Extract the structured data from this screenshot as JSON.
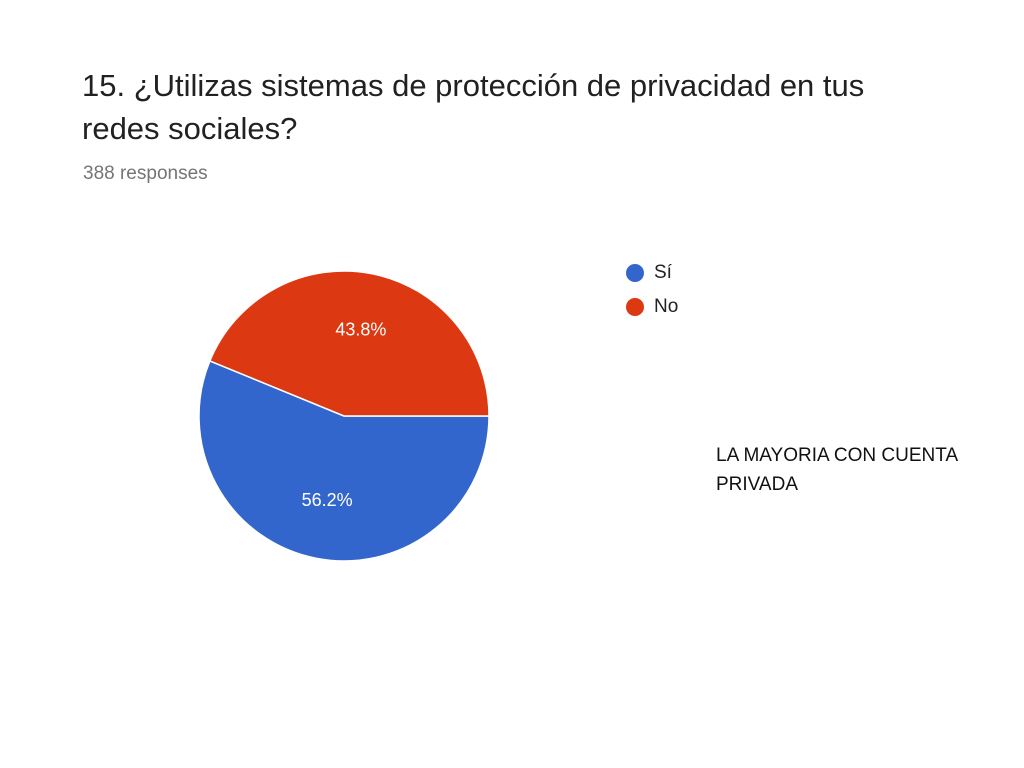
{
  "slide": {
    "note": "LA MAYORIA CON CUENTA PRIVADA"
  },
  "chart_data": {
    "type": "pie",
    "title": "15. ¿Utilizas sistemas de protección de privacidad en tus redes sociales?",
    "subtitle": "388 responses",
    "categories": [
      "Sí",
      "No"
    ],
    "values": [
      56.2,
      43.8
    ],
    "labels": [
      "56.2%",
      "43.8%"
    ],
    "colors": [
      "#3366cc",
      "#dc3912"
    ],
    "legend_position": "right"
  }
}
